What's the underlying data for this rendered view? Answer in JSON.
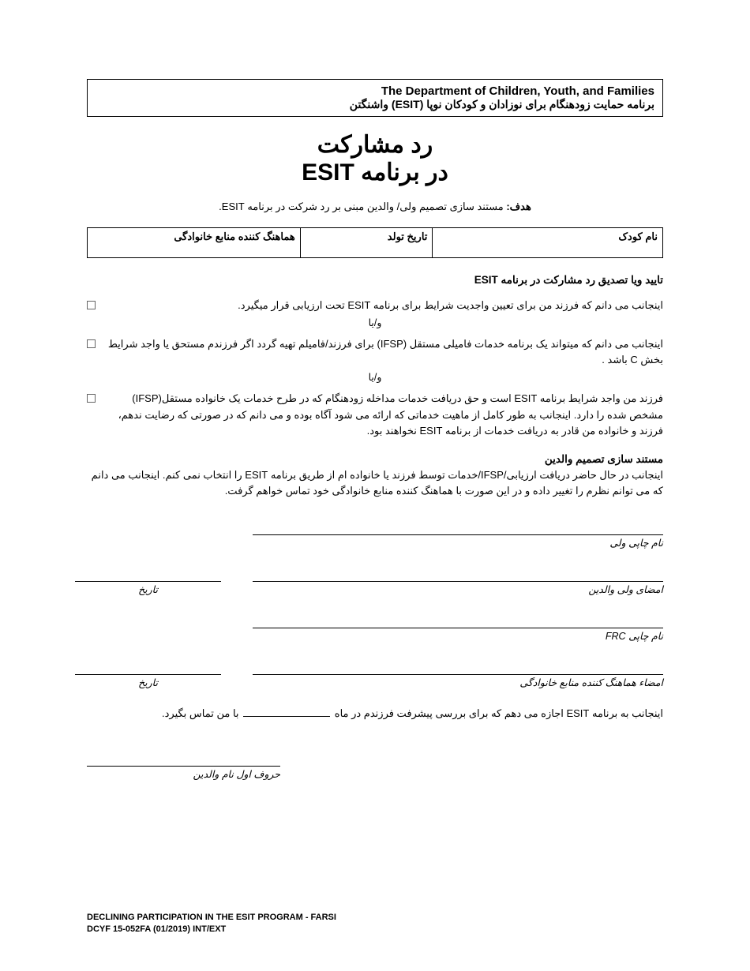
{
  "header": {
    "dept_en": "The Department of Children, Youth, and Families",
    "program_fa": "برنامه حمایت زودهنگام برای نوزادان و کودکان نوپا (ESIT) واشنگتن"
  },
  "title": {
    "line1": "رد مشارکت",
    "line2": "در برنامه ESIT"
  },
  "purpose": {
    "label": "هدف:",
    "text": "مستند سازی تصمیم ولی/ والدین مبنی بر رد شرکت در برنامه ESIT."
  },
  "info_table": {
    "child_name": "نام کودک",
    "dob": "تاریخ تولد",
    "frc": "هماهنگ کننده منابع خانوادگی"
  },
  "ack": {
    "heading": "تایید ویا تصدیق رد مشارکت در برنامه ESIT",
    "item1": "اینجانب می دانم که فرزند من برای تعیین واجدیت شرایط برای برنامه ESIT تحت ارزیابی قرار میگیرد.",
    "andor": "و/یا",
    "item2": "اینجانب می دانم که میتواند یک برنامه خدمات فامیلی مستقل (IFSP) برای فرزند/فامیلم تهیه گردد اگر فرزندم مستحق یا واجد شرایط بخش C باشد .",
    "item3": "فرزند من واجد شرایط برنامه ESIT است و حق دریافت خدمات مداخله زودهنگام که در طرح خدمات یک خانواده مستقل(IFSP) مشخص شده را دارد. اینجانب به طور کامل از ماهیت خدماتی که ارائه می شود آگاه بوده و می دانم که در صورتی که رضایت ندهم، فرزند و خانواده من قادر به دریافت خدمات از برنامه ESIT نخواهند بود."
  },
  "decision": {
    "heading": "مستند سازی تصمیم والدین",
    "text": "اینجانب در حال حاضر دریافت ارزیابی/IFSP/خدمات توسط فرزند یا خانواده ام از طریق برنامه ESIT را انتخاب نمی کنم. اینجانب می دانم که می توانم نظرم را تغییر داده و در این صورت با هماهنگ کننده منابع خانوادگی خود تماس خواهم گرفت."
  },
  "sig": {
    "parent_print": "نام چاپی ولی",
    "parent_sign": "امضای ولی والدین",
    "date": "تاریخ",
    "frc_print": "نام چاپی FRC",
    "frc_sign": "امضاء هماهنگ کننده منابع خانوادگی"
  },
  "permit": {
    "part1": "اینجانب به برنامه ESIT اجازه می دهم که برای بررسی پیشرفت فرزندم در ماه ",
    "part2": " با من تماس بگیرد."
  },
  "initials_label": "حروف اول نام والدین",
  "footer": {
    "line1": "DECLINING PARTICIPATION IN THE ESIT PROGRAM - FARSI",
    "line2": "DCYF 15-052FA (01/2019) INT/EXT"
  }
}
